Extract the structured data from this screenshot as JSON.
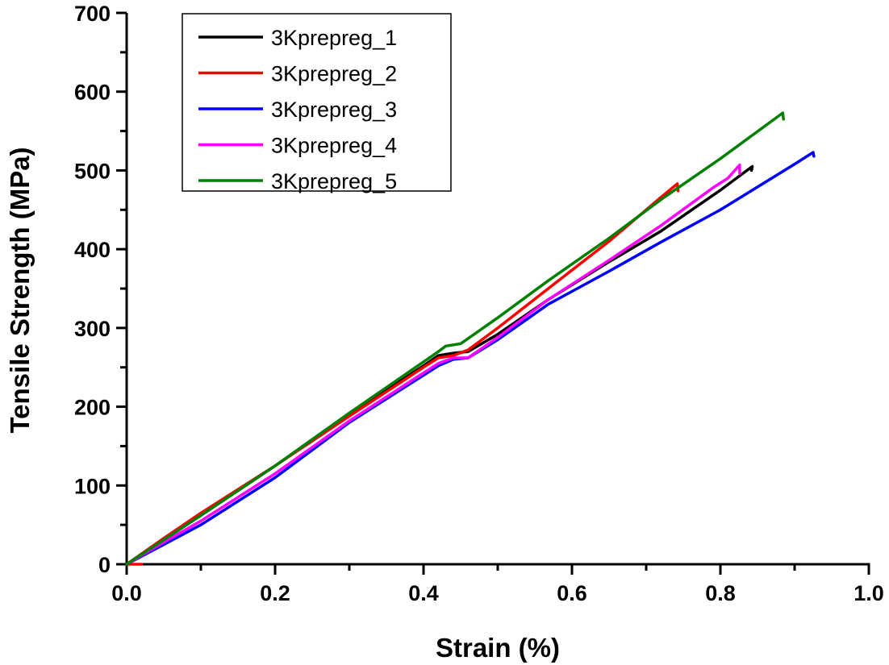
{
  "chart_data": {
    "type": "line",
    "title": "",
    "xlabel": "Strain (%)",
    "ylabel": "Tensile Strength (MPa)",
    "xlim": [
      0.0,
      1.0
    ],
    "ylim": [
      0,
      700
    ],
    "xticks": [
      0.0,
      0.2,
      0.4,
      0.6,
      0.8,
      1.0
    ],
    "xtick_labels": [
      "0.0",
      "0.2",
      "0.4",
      "0.6",
      "0.8",
      "1.0"
    ],
    "yticks": [
      0,
      100,
      200,
      300,
      400,
      500,
      600,
      700
    ],
    "ytick_labels": [
      "0",
      "100",
      "200",
      "300",
      "400",
      "500",
      "600",
      "700"
    ],
    "grid": false,
    "legend_position": "top-left",
    "series": [
      {
        "name": "3Kprepreg_1",
        "color": "#000000",
        "x": [
          0,
          0.05,
          0.1,
          0.2,
          0.3,
          0.4,
          0.42,
          0.44,
          0.46,
          0.5,
          0.568,
          0.65,
          0.72,
          0.8,
          0.843,
          0.842
        ],
        "y": [
          0,
          31,
          62,
          125,
          190,
          252,
          265,
          268,
          270,
          292,
          336,
          384,
          423,
          475,
          505,
          500
        ]
      },
      {
        "name": "3Kprepreg_2",
        "color": "#ff0000",
        "x": [
          0.02,
          0.0,
          0.05,
          0.1,
          0.2,
          0.3,
          0.4,
          0.42,
          0.44,
          0.46,
          0.5,
          0.568,
          0.65,
          0.72,
          0.742,
          0.743
        ],
        "y": [
          0,
          0,
          33,
          65,
          125,
          188,
          250,
          262,
          265,
          272,
          300,
          350,
          410,
          466,
          483,
          474
        ]
      },
      {
        "name": "3Kprepreg_3",
        "color": "#0000ff",
        "x": [
          0,
          0.05,
          0.1,
          0.2,
          0.3,
          0.4,
          0.42,
          0.44,
          0.46,
          0.5,
          0.568,
          0.65,
          0.72,
          0.8,
          0.9,
          0.925,
          0.926
        ],
        "y": [
          0,
          25,
          50,
          110,
          180,
          240,
          252,
          260,
          262,
          285,
          330,
          372,
          409,
          450,
          508,
          523,
          518
        ]
      },
      {
        "name": "3Kprepreg_4",
        "color": "#ff00ff",
        "x": [
          0,
          0.05,
          0.1,
          0.2,
          0.3,
          0.4,
          0.42,
          0.44,
          0.46,
          0.5,
          0.568,
          0.65,
          0.72,
          0.79,
          0.81,
          0.826,
          0.826
        ],
        "y": [
          0,
          28,
          55,
          115,
          182,
          243,
          255,
          262,
          262,
          288,
          336,
          386,
          430,
          478,
          490,
          507,
          496
        ]
      },
      {
        "name": "3Kprepreg_5",
        "color": "#008000",
        "x": [
          0,
          0.05,
          0.1,
          0.2,
          0.3,
          0.4,
          0.42,
          0.43,
          0.45,
          0.5,
          0.568,
          0.65,
          0.72,
          0.8,
          0.884,
          0.885
        ],
        "y": [
          0,
          31,
          62,
          125,
          192,
          257,
          270,
          277,
          280,
          313,
          360,
          414,
          463,
          515,
          573,
          565
        ]
      }
    ]
  }
}
